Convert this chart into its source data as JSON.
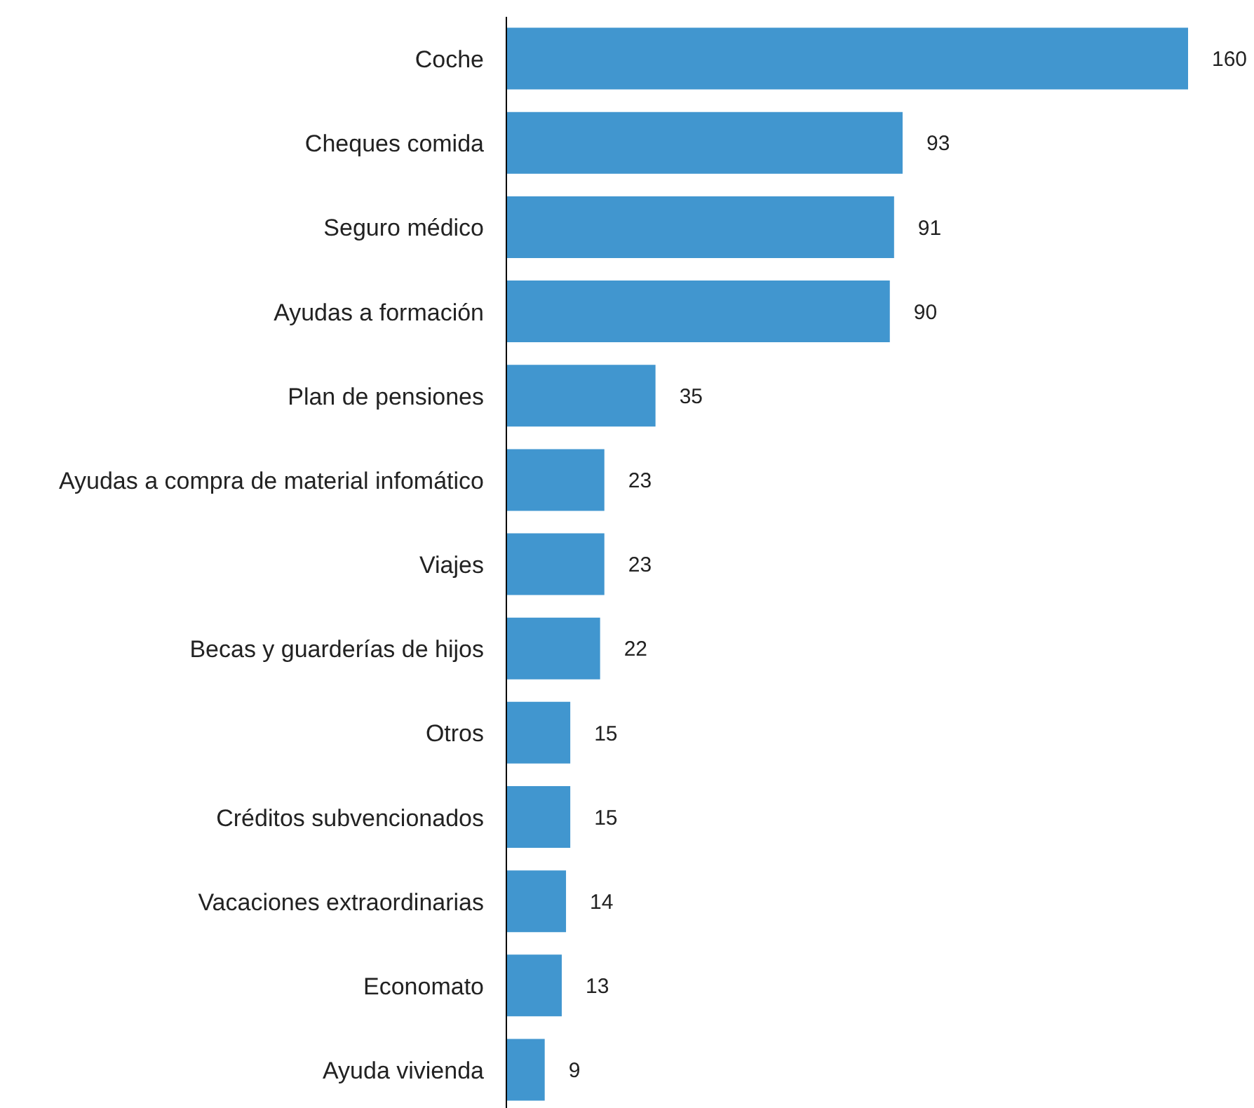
{
  "chart_data": {
    "type": "bar",
    "orientation": "horizontal",
    "categories": [
      "Coche",
      "Cheques comida",
      "Seguro médico",
      "Ayudas a formación",
      "Plan de pensiones",
      "Ayudas a compra de material infomático",
      "Viajes",
      "Becas y guarderías de hijos",
      "Otros",
      "Créditos subvencionados",
      "Vacaciones extraordinarias",
      "Economato",
      "Ayuda vivienda"
    ],
    "values": [
      160,
      93,
      91,
      90,
      35,
      23,
      23,
      22,
      15,
      15,
      14,
      13,
      9
    ],
    "color": "#4196cf",
    "data_labels": true
  }
}
